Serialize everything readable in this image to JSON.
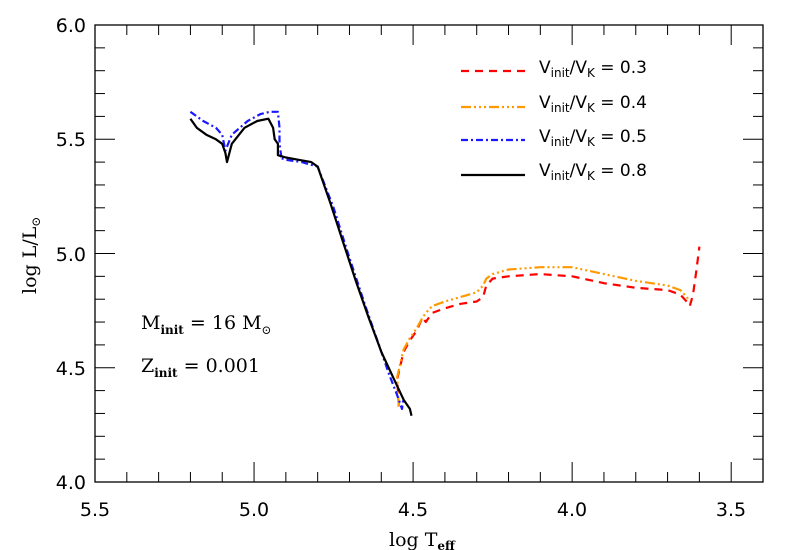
{
  "chart_data": {
    "type": "line",
    "title": "",
    "xlabel": "log T_eff",
    "ylabel": "log L/L_sun",
    "xlim": [
      5.5,
      3.4
    ],
    "ylim": [
      4.0,
      6.0
    ],
    "x_inverted": true,
    "grid": false,
    "legend_position": "upper right",
    "xticks": [
      "5.5",
      "5.0",
      "4.5",
      "4.0",
      "3.5"
    ],
    "yticks": [
      "4.0",
      "4.5",
      "5.0",
      "5.5",
      "6.0"
    ],
    "series": [
      {
        "name": "V_init/V_K = 0.3",
        "color": "#ff0000",
        "style": "dashed",
        "x": [
          4.545,
          4.55,
          4.53,
          4.51,
          4.49,
          4.48,
          4.47,
          4.46,
          4.44,
          4.4,
          4.35,
          4.3,
          4.28,
          4.27,
          4.25,
          4.2,
          4.1,
          4.0,
          3.9,
          3.8,
          3.7,
          3.66,
          3.64,
          3.63,
          3.62,
          3.61,
          3.6
        ],
        "y": [
          4.33,
          4.45,
          4.57,
          4.62,
          4.66,
          4.69,
          4.72,
          4.7,
          4.74,
          4.76,
          4.78,
          4.79,
          4.81,
          4.86,
          4.89,
          4.9,
          4.91,
          4.9,
          4.87,
          4.85,
          4.84,
          4.82,
          4.79,
          4.77,
          4.82,
          4.92,
          5.03
        ]
      },
      {
        "name": "V_init/V_K = 0.4",
        "color": "#ff9900",
        "style": "dash-dot-dot",
        "x": [
          4.545,
          4.55,
          4.53,
          4.51,
          4.49,
          4.47,
          4.46,
          4.44,
          4.4,
          4.35,
          4.3,
          4.28,
          4.27,
          4.25,
          4.2,
          4.1,
          4.0,
          3.9,
          3.8,
          3.7,
          3.66,
          3.64,
          3.63
        ],
        "y": [
          4.33,
          4.46,
          4.58,
          4.63,
          4.67,
          4.72,
          4.74,
          4.77,
          4.79,
          4.81,
          4.83,
          4.86,
          4.89,
          4.91,
          4.93,
          4.94,
          4.94,
          4.91,
          4.88,
          4.86,
          4.84,
          4.81,
          4.79
        ]
      },
      {
        "name": "V_init/V_K = 0.5",
        "color": "#1a1aff",
        "style": "dash-dot",
        "x": [
          5.2,
          5.16,
          5.12,
          5.1,
          5.09,
          5.07,
          5.02,
          4.98,
          4.95,
          4.925,
          4.92,
          4.92,
          4.915,
          4.92,
          4.9,
          4.85,
          4.8,
          4.75,
          4.7,
          4.65,
          4.6,
          4.575,
          4.55,
          4.535,
          4.53
        ],
        "y": [
          5.62,
          5.58,
          5.55,
          5.52,
          5.45,
          5.52,
          5.58,
          5.61,
          5.62,
          5.62,
          5.55,
          5.48,
          5.43,
          5.42,
          5.41,
          5.4,
          5.38,
          5.2,
          4.98,
          4.77,
          4.57,
          4.47,
          4.38,
          4.32,
          4.37
        ]
      },
      {
        "name": "V_init/V_K = 0.8",
        "color": "#000000",
        "style": "solid",
        "x": [
          5.2,
          5.18,
          5.15,
          5.12,
          5.1,
          5.09,
          5.085,
          5.07,
          5.03,
          4.99,
          4.955,
          4.94,
          4.935,
          4.925,
          4.925,
          4.9,
          4.86,
          4.82,
          4.8,
          4.76,
          4.72,
          4.68,
          4.64,
          4.6,
          4.56,
          4.53,
          4.51,
          4.505
        ],
        "y": [
          5.59,
          5.55,
          5.52,
          5.5,
          5.48,
          5.44,
          5.4,
          5.48,
          5.55,
          5.58,
          5.59,
          5.55,
          5.5,
          5.48,
          5.43,
          5.42,
          5.41,
          5.4,
          5.38,
          5.22,
          5.05,
          4.88,
          4.72,
          4.57,
          4.45,
          4.36,
          4.32,
          4.29
        ]
      }
    ],
    "annotations": [
      "M_init = 16 M_sun",
      "Z_init = 0.001"
    ]
  },
  "axes": {
    "xlabel_main": "log T",
    "xlabel_sub": "eff",
    "ylabel_main": "log L/L",
    "ylabel_sun": "⊙"
  },
  "legend": [
    {
      "main": "V",
      "sub1": "init",
      "slash": "/V",
      "sub2": "K",
      "value": " = 0.3"
    },
    {
      "main": "V",
      "sub1": "init",
      "slash": "/V",
      "sub2": "K",
      "value": " = 0.4"
    },
    {
      "main": "V",
      "sub1": "init",
      "slash": "/V",
      "sub2": "K",
      "value": " = 0.5"
    },
    {
      "main": "V",
      "sub1": "init",
      "slash": "/V",
      "sub2": "K",
      "value": " = 0.8"
    }
  ],
  "annotation_text": {
    "mass_main": "M",
    "mass_sub": "init",
    "mass_value": " = 16 M",
    "mass_sun": "⊙",
    "z_main": "Z",
    "z_sub": "init",
    "z_value": " = 0.001"
  }
}
